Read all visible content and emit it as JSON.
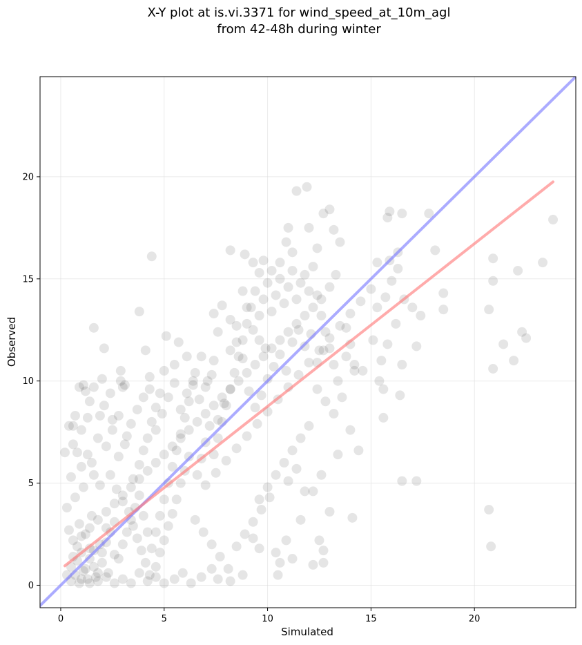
{
  "chart_data": {
    "type": "scatter",
    "title_lines": [
      "X-Y plot at is.vi.3371 for wind_speed_at_10m_agl",
      "from 42-48h during winter"
    ],
    "xlabel": "Simulated",
    "ylabel": "Observed",
    "xlim": [
      -1.0,
      24.9
    ],
    "ylim": [
      -1.1,
      24.9
    ],
    "x_ticks": [
      0,
      5,
      10,
      15,
      20
    ],
    "y_ticks": [
      0,
      5,
      10,
      15,
      20
    ],
    "grid": true,
    "colors": {
      "points": "#000000",
      "identity_line": "#7777ff",
      "fit_line": "#ff7777",
      "grid": "#dddddd",
      "frame": "#000000"
    },
    "lines": [
      {
        "role": "one-to-one",
        "points": [
          [
            -1.0,
            -1.0
          ],
          [
            24.9,
            24.9
          ]
        ]
      },
      {
        "role": "regression",
        "points": [
          [
            0.2,
            0.95
          ],
          [
            23.8,
            19.75
          ]
        ]
      }
    ],
    "points": [
      [
        0.5,
        0.2
      ],
      [
        0.7,
        0.5
      ],
      [
        0.9,
        0.1
      ],
      [
        1.1,
        0.7
      ],
      [
        1.3,
        0.3
      ],
      [
        1.6,
        0.9
      ],
      [
        0.8,
        1.2
      ],
      [
        1.0,
        1.6
      ],
      [
        1.4,
        1.8
      ],
      [
        0.6,
        2.2
      ],
      [
        1.2,
        2.5
      ],
      [
        1.7,
        0.4
      ],
      [
        2.0,
        1.1
      ],
      [
        2.3,
        0.6
      ],
      [
        2.6,
        1.5
      ],
      [
        1.9,
        2.0
      ],
      [
        2.2,
        2.8
      ],
      [
        0.4,
        2.7
      ],
      [
        0.9,
        3.0
      ],
      [
        1.5,
        3.4
      ],
      [
        0.3,
        3.8
      ],
      [
        0.7,
        4.3
      ],
      [
        1.1,
        4.8
      ],
      [
        0.5,
        5.3
      ],
      [
        0.8,
        6.5
      ],
      [
        1.0,
        7.6
      ],
      [
        0.6,
        7.8
      ],
      [
        1.5,
        6.0
      ],
      [
        1.3,
        8.2
      ],
      [
        0.9,
        9.7
      ],
      [
        1.2,
        9.5
      ],
      [
        1.6,
        9.7
      ],
      [
        2.0,
        10.1
      ],
      [
        1.9,
        8.3
      ],
      [
        2.1,
        11.6
      ],
      [
        1.6,
        12.6
      ],
      [
        2.5,
        8.1
      ],
      [
        2.9,
        10.0
      ],
      [
        3.1,
        9.8
      ],
      [
        3.0,
        9.7
      ],
      [
        3.2,
        7.3
      ],
      [
        2.8,
        6.3
      ],
      [
        2.4,
        5.4
      ],
      [
        2.7,
        4.7
      ],
      [
        3.0,
        4.1
      ],
      [
        3.3,
        3.6
      ],
      [
        3.5,
        2.9
      ],
      [
        3.7,
        2.3
      ],
      [
        3.9,
        1.7
      ],
      [
        4.1,
        1.1
      ],
      [
        4.3,
        0.5
      ],
      [
        4.6,
        0.9
      ],
      [
        4.8,
        1.6
      ],
      [
        5.0,
        2.2
      ],
      [
        5.2,
        2.9
      ],
      [
        5.4,
        3.5
      ],
      [
        5.6,
        4.2
      ],
      [
        5.8,
        5.0
      ],
      [
        6.0,
        5.6
      ],
      [
        6.2,
        6.3
      ],
      [
        3.5,
        5.2
      ],
      [
        3.8,
        5.9
      ],
      [
        4.0,
        6.6
      ],
      [
        4.2,
        7.2
      ],
      [
        4.4,
        8.0
      ],
      [
        4.6,
        8.7
      ],
      [
        4.8,
        9.4
      ],
      [
        4.3,
        10.2
      ],
      [
        5.0,
        10.5
      ],
      [
        5.1,
        12.2
      ],
      [
        4.4,
        16.1
      ],
      [
        3.8,
        13.4
      ],
      [
        4.1,
        11.5
      ],
      [
        5.5,
        10.8
      ],
      [
        5.7,
        11.9
      ],
      [
        6.1,
        11.2
      ],
      [
        6.5,
        10.4
      ],
      [
        6.8,
        11.2
      ],
      [
        7.1,
        10.0
      ],
      [
        7.4,
        11.0
      ],
      [
        7.6,
        12.4
      ],
      [
        7.4,
        13.3
      ],
      [
        7.8,
        13.7
      ],
      [
        8.2,
        13.0
      ],
      [
        8.5,
        12.7
      ],
      [
        8.8,
        14.4
      ],
      [
        9.0,
        13.6
      ],
      [
        9.3,
        12.5
      ],
      [
        9.6,
        12.0
      ],
      [
        9.9,
        11.6
      ],
      [
        8.2,
        16.4
      ],
      [
        8.9,
        16.2
      ],
      [
        9.3,
        15.8
      ],
      [
        9.6,
        15.3
      ],
      [
        9.8,
        15.9
      ],
      [
        10.2,
        15.4
      ],
      [
        10.6,
        15.8
      ],
      [
        10.9,
        16.8
      ],
      [
        11.0,
        17.5
      ],
      [
        11.2,
        16.3
      ],
      [
        11.4,
        19.3
      ],
      [
        11.9,
        19.5
      ],
      [
        12.0,
        17.5
      ],
      [
        12.4,
        16.5
      ],
      [
        12.7,
        18.2
      ],
      [
        13.0,
        18.4
      ],
      [
        13.2,
        17.4
      ],
      [
        13.5,
        16.8
      ],
      [
        13.3,
        15.2
      ],
      [
        13.0,
        14.6
      ],
      [
        12.6,
        14.0
      ],
      [
        12.2,
        13.6
      ],
      [
        11.8,
        13.2
      ],
      [
        11.4,
        12.8
      ],
      [
        11.0,
        12.4
      ],
      [
        10.6,
        12.0
      ],
      [
        10.2,
        11.6
      ],
      [
        9.8,
        11.2
      ],
      [
        9.4,
        10.8
      ],
      [
        9.0,
        10.4
      ],
      [
        8.6,
        10.0
      ],
      [
        8.2,
        9.6
      ],
      [
        7.8,
        9.2
      ],
      [
        7.4,
        8.8
      ],
      [
        7.0,
        8.4
      ],
      [
        6.6,
        8.0
      ],
      [
        6.2,
        7.6
      ],
      [
        5.8,
        7.2
      ],
      [
        5.4,
        6.8
      ],
      [
        5.0,
        6.4
      ],
      [
        4.6,
        6.0
      ],
      [
        4.2,
        5.6
      ],
      [
        3.8,
        5.2
      ],
      [
        3.4,
        4.8
      ],
      [
        3.0,
        4.4
      ],
      [
        2.6,
        4.0
      ],
      [
        2.2,
        3.6
      ],
      [
        1.8,
        3.2
      ],
      [
        1.4,
        2.8
      ],
      [
        1.0,
        2.4
      ],
      [
        6.5,
        3.2
      ],
      [
        6.9,
        2.6
      ],
      [
        7.3,
        2.0
      ],
      [
        7.7,
        1.4
      ],
      [
        8.1,
        0.8
      ],
      [
        8.5,
        1.9
      ],
      [
        8.9,
        2.5
      ],
      [
        9.3,
        3.1
      ],
      [
        9.7,
        3.7
      ],
      [
        10.1,
        4.3
      ],
      [
        7.0,
        4.9
      ],
      [
        7.5,
        5.5
      ],
      [
        8.0,
        6.1
      ],
      [
        8.5,
        6.7
      ],
      [
        9.0,
        7.3
      ],
      [
        9.5,
        7.9
      ],
      [
        10.0,
        8.5
      ],
      [
        10.5,
        9.1
      ],
      [
        11.0,
        9.7
      ],
      [
        11.5,
        10.3
      ],
      [
        12.0,
        10.9
      ],
      [
        12.5,
        11.5
      ],
      [
        13.0,
        12.1
      ],
      [
        13.5,
        12.7
      ],
      [
        14.0,
        13.3
      ],
      [
        14.5,
        13.9
      ],
      [
        15.0,
        14.5
      ],
      [
        13.8,
        11.2
      ],
      [
        14.2,
        10.8
      ],
      [
        14.6,
        10.5
      ],
      [
        12.4,
        9.6
      ],
      [
        12.8,
        9.0
      ],
      [
        13.2,
        8.4
      ],
      [
        12.0,
        7.8
      ],
      [
        11.6,
        7.2
      ],
      [
        11.2,
        6.6
      ],
      [
        10.8,
        6.0
      ],
      [
        10.4,
        5.4
      ],
      [
        10.0,
        4.8
      ],
      [
        9.6,
        4.2
      ],
      [
        11.0,
        5.1
      ],
      [
        11.4,
        5.7
      ],
      [
        11.8,
        4.6
      ],
      [
        12.2,
        4.6
      ],
      [
        12.6,
        5.4
      ],
      [
        13.0,
        3.6
      ],
      [
        13.4,
        6.4
      ],
      [
        14.0,
        7.6
      ],
      [
        14.4,
        6.6
      ],
      [
        14.1,
        3.3
      ],
      [
        10.5,
        0.5
      ],
      [
        10.6,
        1.1
      ],
      [
        10.9,
        2.2
      ],
      [
        11.2,
        1.3
      ],
      [
        12.2,
        1.0
      ],
      [
        12.7,
        1.1
      ],
      [
        12.7,
        1.7
      ],
      [
        12.5,
        2.2
      ],
      [
        11.6,
        3.2
      ],
      [
        10.4,
        1.6
      ],
      [
        9.6,
        1.8
      ],
      [
        9.3,
        2.3
      ],
      [
        8.8,
        0.5
      ],
      [
        8.2,
        0.2
      ],
      [
        7.6,
        0.3
      ],
      [
        7.3,
        0.8
      ],
      [
        6.8,
        0.4
      ],
      [
        6.3,
        0.1
      ],
      [
        5.9,
        0.6
      ],
      [
        5.5,
        0.3
      ],
      [
        5.0,
        0.1
      ],
      [
        4.6,
        0.4
      ],
      [
        4.2,
        0.2
      ],
      [
        3.8,
        0.6
      ],
      [
        3.4,
        0.1
      ],
      [
        3.0,
        0.3
      ],
      [
        2.6,
        0.1
      ],
      [
        2.2,
        0.4
      ],
      [
        1.8,
        0.2
      ],
      [
        1.4,
        0.1
      ],
      [
        15.1,
        12.0
      ],
      [
        15.5,
        11.0
      ],
      [
        15.8,
        11.8
      ],
      [
        16.2,
        12.8
      ],
      [
        16.6,
        14.0
      ],
      [
        17.0,
        13.6
      ],
      [
        17.4,
        13.2
      ],
      [
        15.3,
        13.6
      ],
      [
        15.7,
        14.1
      ],
      [
        16.0,
        14.9
      ],
      [
        16.3,
        15.5
      ],
      [
        15.9,
        15.9
      ],
      [
        15.8,
        18.0
      ],
      [
        15.9,
        18.3
      ],
      [
        16.5,
        18.2
      ],
      [
        17.8,
        18.2
      ],
      [
        18.1,
        16.4
      ],
      [
        16.3,
        16.3
      ],
      [
        18.5,
        14.3
      ],
      [
        18.5,
        13.5
      ],
      [
        15.4,
        10.0
      ],
      [
        15.6,
        9.6
      ],
      [
        16.4,
        9.3
      ],
      [
        16.5,
        10.8
      ],
      [
        17.2,
        11.7
      ],
      [
        15.6,
        8.2
      ],
      [
        14.2,
        10.5
      ],
      [
        16.5,
        5.1
      ],
      [
        17.2,
        5.1
      ],
      [
        15.3,
        15.8
      ],
      [
        20.7,
        13.5
      ],
      [
        20.9,
        14.9
      ],
      [
        20.9,
        16.0
      ],
      [
        22.1,
        15.4
      ],
      [
        23.3,
        15.8
      ],
      [
        23.8,
        17.9
      ],
      [
        22.3,
        12.4
      ],
      [
        22.5,
        12.1
      ],
      [
        21.4,
        11.8
      ],
      [
        21.9,
        11.0
      ],
      [
        20.9,
        10.6
      ],
      [
        20.7,
        3.7
      ],
      [
        20.8,
        1.9
      ],
      [
        0.3,
        0.5
      ],
      [
        0.5,
        0.9
      ],
      [
        0.6,
        1.4
      ],
      [
        0.8,
        1.9
      ],
      [
        1.0,
        0.3
      ],
      [
        1.2,
        0.8
      ],
      [
        1.4,
        1.3
      ],
      [
        1.6,
        1.7
      ],
      [
        1.8,
        0.6
      ],
      [
        2.0,
        1.6
      ],
      [
        2.2,
        2.1
      ],
      [
        2.4,
        2.6
      ],
      [
        2.6,
        3.1
      ],
      [
        2.8,
        1.3
      ],
      [
        3.0,
        2.0
      ],
      [
        3.2,
        2.6
      ],
      [
        3.4,
        3.2
      ],
      [
        3.6,
        3.8
      ],
      [
        3.8,
        4.4
      ],
      [
        4.0,
        3.4
      ],
      [
        4.2,
        2.6
      ],
      [
        4.4,
        1.8
      ],
      [
        4.6,
        2.6
      ],
      [
        4.8,
        3.4
      ],
      [
        5.0,
        4.2
      ],
      [
        5.2,
        5.0
      ],
      [
        5.4,
        5.8
      ],
      [
        5.6,
        6.6
      ],
      [
        5.8,
        7.4
      ],
      [
        6.0,
        8.2
      ],
      [
        6.2,
        9.0
      ],
      [
        6.4,
        9.8
      ],
      [
        6.6,
        5.4
      ],
      [
        6.8,
        6.2
      ],
      [
        7.0,
        7.0
      ],
      [
        7.2,
        7.8
      ],
      [
        7.4,
        6.4
      ],
      [
        7.6,
        7.2
      ],
      [
        7.8,
        8.0
      ],
      [
        8.0,
        8.8
      ],
      [
        8.2,
        9.6
      ],
      [
        8.4,
        10.4
      ],
      [
        8.6,
        11.2
      ],
      [
        8.8,
        12.0
      ],
      [
        9.0,
        12.8
      ],
      [
        9.2,
        13.6
      ],
      [
        9.4,
        14.4
      ],
      [
        9.6,
        13.2
      ],
      [
        9.8,
        14.0
      ],
      [
        10.0,
        14.8
      ],
      [
        10.2,
        13.4
      ],
      [
        10.4,
        14.2
      ],
      [
        10.6,
        15.0
      ],
      [
        10.8,
        13.8
      ],
      [
        11.0,
        14.6
      ],
      [
        11.2,
        15.4
      ],
      [
        11.4,
        14.0
      ],
      [
        11.6,
        14.8
      ],
      [
        11.8,
        15.2
      ],
      [
        12.0,
        14.4
      ],
      [
        12.2,
        15.6
      ],
      [
        12.4,
        14.2
      ],
      [
        12.6,
        13.2
      ],
      [
        12.8,
        12.4
      ],
      [
        13.0,
        11.6
      ],
      [
        13.2,
        10.8
      ],
      [
        13.4,
        10.0
      ],
      [
        13.6,
        9.2
      ],
      [
        13.8,
        12.6
      ],
      [
        14.0,
        11.8
      ],
      [
        1.0,
        5.8
      ],
      [
        1.3,
        6.4
      ],
      [
        1.6,
        5.4
      ],
      [
        1.9,
        4.9
      ],
      [
        2.2,
        6.8
      ],
      [
        2.5,
        7.6
      ],
      [
        2.8,
        8.3
      ],
      [
        3.1,
        6.9
      ],
      [
        3.4,
        7.9
      ],
      [
        3.7,
        8.6
      ],
      [
        4.0,
        9.2
      ],
      [
        4.3,
        9.6
      ],
      [
        4.6,
        7.6
      ],
      [
        4.9,
        8.4
      ],
      [
        5.2,
        9.2
      ],
      [
        5.5,
        9.9
      ],
      [
        5.8,
        8.6
      ],
      [
        6.1,
        9.4
      ],
      [
        6.4,
        10.0
      ],
      [
        6.7,
        9.1
      ],
      [
        7.0,
        9.7
      ],
      [
        7.3,
        10.3
      ],
      [
        7.6,
        8.1
      ],
      [
        7.9,
        8.9
      ],
      [
        8.2,
        11.5
      ],
      [
        8.5,
        11.9
      ],
      [
        8.8,
        11.1
      ],
      [
        9.1,
        9.5
      ],
      [
        9.4,
        8.7
      ],
      [
        9.7,
        9.3
      ],
      [
        10.0,
        10.1
      ],
      [
        10.3,
        10.7
      ],
      [
        10.6,
        11.3
      ],
      [
        10.9,
        10.5
      ],
      [
        11.2,
        11.9
      ],
      [
        11.5,
        12.5
      ],
      [
        11.8,
        11.7
      ],
      [
        12.1,
        12.3
      ],
      [
        12.4,
        10.9
      ],
      [
        12.7,
        11.5
      ],
      [
        0.2,
        6.5
      ],
      [
        0.4,
        7.8
      ],
      [
        0.6,
        6.9
      ],
      [
        1.1,
        9.8
      ],
      [
        1.4,
        9.0
      ],
      [
        0.7,
        8.3
      ],
      [
        1.8,
        7.2
      ],
      [
        2.1,
        8.8
      ],
      [
        2.4,
        9.4
      ],
      [
        2.9,
        10.5
      ]
    ]
  }
}
